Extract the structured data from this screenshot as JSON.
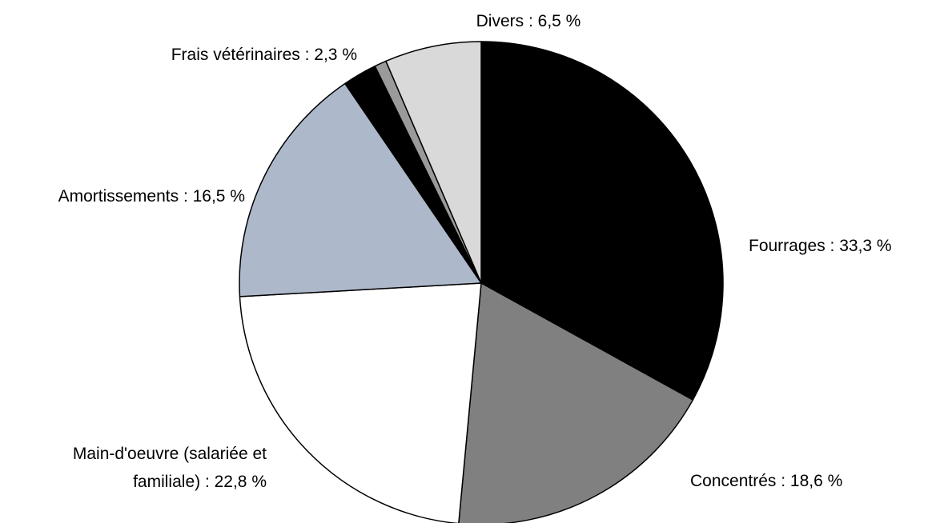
{
  "chart_data": {
    "type": "pie",
    "title": "",
    "slices": [
      {
        "label": "Fourrages : 33,3 %",
        "value": 33.3,
        "color": "#000000"
      },
      {
        "label": "Concentrés :  18,6 %",
        "value": 18.6,
        "color": "#808080"
      },
      {
        "label_lines": [
          "Main-d'oeuvre (salariée et",
          "familiale) : 22,8 %"
        ],
        "value": 22.8,
        "color": "#ffffff"
      },
      {
        "label": "Amortissements : 16,5 %",
        "value": 16.5,
        "color": "#adb9ca"
      },
      {
        "label": "Frais vétérinaires : 2,3 %",
        "value": 2.3,
        "color": "#000000"
      },
      {
        "label": "",
        "value": 0.8,
        "color": "#9a9a9a"
      },
      {
        "label": "Divers : 6,5 %",
        "value": 6.5,
        "color": "#d9d9d9"
      }
    ]
  }
}
